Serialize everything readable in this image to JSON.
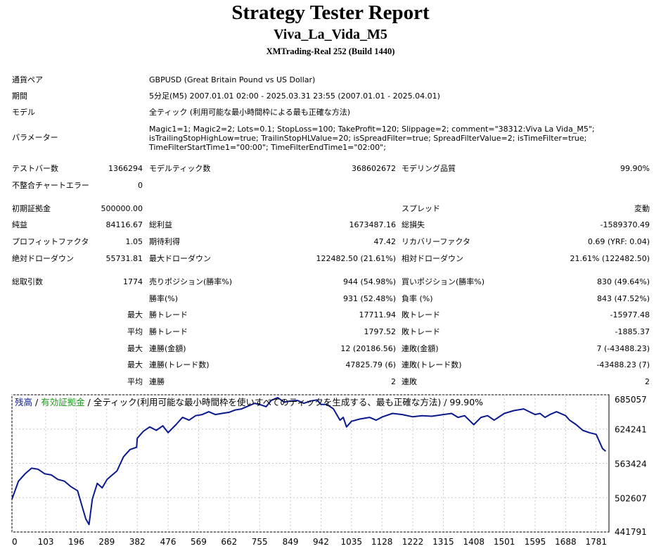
{
  "header": {
    "title": "Strategy Tester Report",
    "ea_name": "Viva_La_Vida_M5",
    "server": "XMTrading-Real 252 (Build 1440)"
  },
  "info": {
    "symbol_label": "通貨ペア",
    "symbol_value": "GBPUSD (Great Britain Pound vs US Dollar)",
    "period_label": "期間",
    "period_value": "5分足(M5) 2007.01.01 02:00 - 2025.03.31 23:55 (2007.01.01 - 2025.04.01)",
    "model_label": "モデル",
    "model_value": "全ティック (利用可能な最小時間枠による最も正確な方法)",
    "params_label": "パラメーター",
    "params_lines": [
      "Magic1=1; Magic2=2; Lots=0.1; StopLoss=100; TakeProfit=120; Slippage=2; comment=\"38312:Viva La Vida_M5\";",
      "isTrailingStopHighLow=true; TrailinStopHLValue=20; isSpreadFilter=true; SpreadFilterValue=2; isTimeFilter=true;",
      "TimeFilterStartTime1=\"00:00\"; TimeFilterEndTime1=\"02:00\";"
    ]
  },
  "stats": {
    "bars_label": "テストバー数",
    "bars_value": "1366294",
    "ticks_label": "モデルティック数",
    "ticks_value": "368602672",
    "quality_label": "モデリング品質",
    "quality_value": "99.90%",
    "mismatch_label": "不整合チャートエラー",
    "mismatch_value": "0",
    "deposit_label": "初期証拠金",
    "deposit_value": "500000.00",
    "spread_label": "スプレッド",
    "spread_value": "変動",
    "net_label": "純益",
    "net_value": "84116.67",
    "gross_profit_label": "総利益",
    "gross_profit_value": "1673487.16",
    "gross_loss_label": "総損失",
    "gross_loss_value": "-1589370.49",
    "pf_label": "プロフィットファクタ",
    "pf_value": "1.05",
    "expected_label": "期待利得",
    "expected_value": "47.42",
    "recovery_label": "リカバリーファクタ",
    "recovery_value": "0.69 (YRF: 0.04)",
    "abs_dd_label": "絶対ドローダウン",
    "abs_dd_value": "55731.81",
    "max_dd_label": "最大ドローダウン",
    "max_dd_value": "122482.50 (21.61%)",
    "rel_dd_label": "相対ドローダウン",
    "rel_dd_value": "21.61% (122482.50)",
    "total_trades_label": "総取引数",
    "total_trades_value": "1774",
    "short_label": "売りポジション(勝率%)",
    "short_value": "944 (54.98%)",
    "long_label": "買いポジション(勝率%)",
    "long_value": "830 (49.64%)",
    "win_pct_label": "勝率(%)",
    "win_pct_value": "931 (52.48%)",
    "loss_pct_label": "負率 (%)",
    "loss_pct_value": "843 (47.52%)",
    "max_word": "最大",
    "avg_word": "平均",
    "max_win_label": "勝トレード",
    "max_win_value": "17711.94",
    "max_loss_label": "敗トレード",
    "max_loss_value": "-15977.48",
    "avg_win_label": "勝トレード",
    "avg_win_value": "1797.52",
    "avg_loss_label": "敗トレード",
    "avg_loss_value": "-1885.37",
    "cons_win_amt_label": "連勝(金額)",
    "cons_win_amt_value": "12 (20186.56)",
    "cons_loss_amt_label": "連敗(金額)",
    "cons_loss_amt_value": "7 (-43488.23)",
    "cons_win_cnt_label": "連勝(トレード数)",
    "cons_win_cnt_value": "47825.79 (6)",
    "cons_loss_cnt_label": "連敗(トレード数)",
    "cons_loss_cnt_value": "-43488.23 (7)",
    "avg_cons_win_label": "連勝",
    "avg_cons_win_value": "2",
    "avg_cons_loss_label": "連敗",
    "avg_cons_loss_value": "2"
  },
  "colors": {
    "balance_line": "#0a1a8c",
    "equity_legend": "#1a9a1a",
    "balance_legend": "#0a1a8c"
  },
  "chart_data": {
    "type": "line",
    "legend": {
      "balance": "残高",
      "sep": " / ",
      "equity": "有効証拠金",
      "rest": " / 全ティック(利用可能な最小時間枠を使いすべてのティックを生成する、最も正確な方法) / 99.90%"
    },
    "x_ticks": [
      0,
      103,
      196,
      289,
      382,
      476,
      569,
      662,
      755,
      849,
      942,
      1035,
      1128,
      1222,
      1315,
      1408,
      1501,
      1595,
      1688,
      1781
    ],
    "y_ticks": [
      685057,
      624241,
      563424,
      502607,
      441791
    ],
    "xlim": [
      0,
      1820
    ],
    "ylim": [
      441791,
      685057
    ],
    "grid": true,
    "series": [
      {
        "name": "残高",
        "x": [
          0,
          20,
          40,
          60,
          80,
          100,
          120,
          140,
          160,
          180,
          200,
          215,
          225,
          235,
          245,
          260,
          275,
          290,
          300,
          320,
          340,
          360,
          380,
          382,
          400,
          420,
          440,
          460,
          476,
          500,
          520,
          540,
          560,
          580,
          600,
          620,
          640,
          662,
          680,
          700,
          720,
          740,
          760,
          775,
          790,
          810,
          830,
          849,
          870,
          890,
          910,
          930,
          942,
          960,
          980,
          1000,
          1010,
          1020,
          1035,
          1060,
          1090,
          1110,
          1130,
          1160,
          1190,
          1222,
          1250,
          1280,
          1315,
          1340,
          1360,
          1380,
          1408,
          1430,
          1450,
          1470,
          1501,
          1530,
          1560,
          1595,
          1610,
          1625,
          1640,
          1660,
          1688,
          1700,
          1720,
          1740,
          1760,
          1781,
          1800,
          1810
        ],
        "y": [
          500000,
          532000,
          545000,
          555000,
          553000,
          545000,
          543000,
          535000,
          532000,
          522000,
          515000,
          485000,
          465000,
          455000,
          500000,
          528000,
          520000,
          535000,
          540000,
          550000,
          575000,
          588000,
          592000,
          608000,
          620000,
          628000,
          622000,
          630000,
          618000,
          632000,
          645000,
          640000,
          648000,
          650000,
          655000,
          650000,
          652000,
          654000,
          658000,
          660000,
          665000,
          670000,
          667000,
          664000,
          675000,
          680000,
          672000,
          674000,
          675000,
          670000,
          674000,
          676000,
          668000,
          668000,
          660000,
          640000,
          645000,
          628000,
          638000,
          642000,
          645000,
          640000,
          646000,
          652000,
          650000,
          646000,
          648000,
          647000,
          650000,
          652000,
          645000,
          648000,
          632000,
          645000,
          648000,
          640000,
          652000,
          657000,
          660000,
          650000,
          652000,
          645000,
          650000,
          655000,
          648000,
          640000,
          632000,
          622000,
          618000,
          615000,
          590000,
          585000
        ]
      }
    ]
  }
}
